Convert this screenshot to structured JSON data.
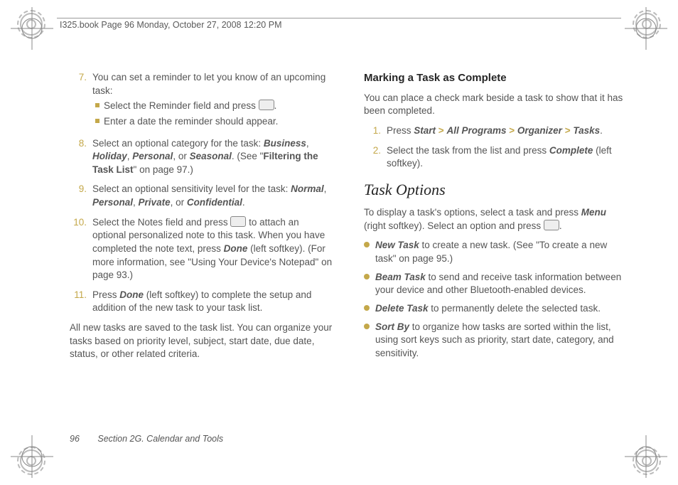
{
  "colors": {
    "accent": "#c4a84a",
    "text": "#555",
    "heading": "#262626"
  },
  "header": {
    "text": "I325.book  Page 96  Monday, October 27, 2008  12:20 PM"
  },
  "left": {
    "items": [
      {
        "n": "7.",
        "text": "You can set a reminder to let you know of an upcoming task:",
        "subs": [
          {
            "pre": "Select the Reminder field and press ",
            "icon": true,
            "post": "."
          },
          {
            "pre": "Enter a date the reminder should appear."
          }
        ]
      },
      {
        "n": "8.",
        "runs": [
          {
            "t": "Select an optional category for the task: "
          },
          {
            "t": "Business",
            "cls": "bi"
          },
          {
            "t": ", "
          },
          {
            "t": "Holiday",
            "cls": "bi"
          },
          {
            "t": ", "
          },
          {
            "t": "Personal",
            "cls": "bi"
          },
          {
            "t": ", or "
          },
          {
            "t": "Seasonal",
            "cls": "bi"
          },
          {
            "t": ". (See \""
          },
          {
            "t": "Filtering the Task List",
            "cls": "b"
          },
          {
            "t": "\" on page 97.)"
          }
        ]
      },
      {
        "n": "9.",
        "runs": [
          {
            "t": "Select an optional sensitivity level for the task: "
          },
          {
            "t": "Normal",
            "cls": "bi"
          },
          {
            "t": ", "
          },
          {
            "t": "Personal",
            "cls": "bi"
          },
          {
            "t": ", "
          },
          {
            "t": "Private",
            "cls": "bi"
          },
          {
            "t": ", or "
          },
          {
            "t": "Confidential",
            "cls": "bi"
          },
          {
            "t": "."
          }
        ]
      },
      {
        "n": "10.",
        "runs": [
          {
            "t": "Select the Notes field and press "
          },
          {
            "icon": true
          },
          {
            "t": " to attach an optional personalized note to this task. When you have completed the note text, press "
          },
          {
            "t": "Done",
            "cls": "bi"
          },
          {
            "t": " (left softkey). (For more information, see \"Using Your Device's Notepad\" on page 93.)"
          }
        ]
      },
      {
        "n": "11.",
        "runs": [
          {
            "t": "Press "
          },
          {
            "t": "Done",
            "cls": "bi"
          },
          {
            "t": " (left softkey) to complete the setup and addition of the new task to your task list."
          }
        ]
      }
    ],
    "tail": "All new tasks are saved to the task list. You can organize your tasks based on priority level, subject, start date, due date, status, or other related criteria."
  },
  "right": {
    "h3": "Marking a Task as Complete",
    "intro": "You can place a check mark beside a task to show that it has been completed.",
    "steps": [
      {
        "n": "1.",
        "runs": [
          {
            "t": "Press "
          },
          {
            "t": "Start",
            "cls": "bi"
          },
          {
            "t": " ",
            "gt": true
          },
          {
            "t": "All Programs",
            "cls": "bi"
          },
          {
            "t": " ",
            "gt": true
          },
          {
            "t": "Organizer",
            "cls": "bi"
          },
          {
            "t": " ",
            "gt": true
          },
          {
            "t": "Tasks",
            "cls": "bi"
          },
          {
            "t": "."
          }
        ]
      },
      {
        "n": "2.",
        "runs": [
          {
            "t": "Select the task from the list and press "
          },
          {
            "t": "Complete",
            "cls": "bi"
          },
          {
            "t": " (left softkey)."
          }
        ]
      }
    ],
    "h2": "Task Options",
    "intro2_runs": [
      {
        "t": "To display a task's options, select a task and press "
      },
      {
        "t": "Menu",
        "cls": "bi"
      },
      {
        "t": " (right softkey). Select an option and press "
      },
      {
        "icon": true
      },
      {
        "t": "."
      }
    ],
    "bullets": [
      {
        "runs": [
          {
            "t": "New Task",
            "cls": "bi"
          },
          {
            "t": " to create a new task. (See \"To create a new task\" on page 95.)"
          }
        ]
      },
      {
        "runs": [
          {
            "t": "Beam Task",
            "cls": "bi"
          },
          {
            "t": " to send and receive task information between your device and other Bluetooth-enabled devices."
          }
        ]
      },
      {
        "runs": [
          {
            "t": "Delete Task",
            "cls": "bi"
          },
          {
            "t": " to permanently delete the selected task."
          }
        ]
      },
      {
        "runs": [
          {
            "t": "Sort By",
            "cls": "bi"
          },
          {
            "t": " to organize how tasks are sorted within the list, using sort keys such as priority, start date, category, and sensitivity."
          }
        ]
      }
    ]
  },
  "footer": {
    "page": "96",
    "section": "Section 2G. Calendar and Tools"
  }
}
